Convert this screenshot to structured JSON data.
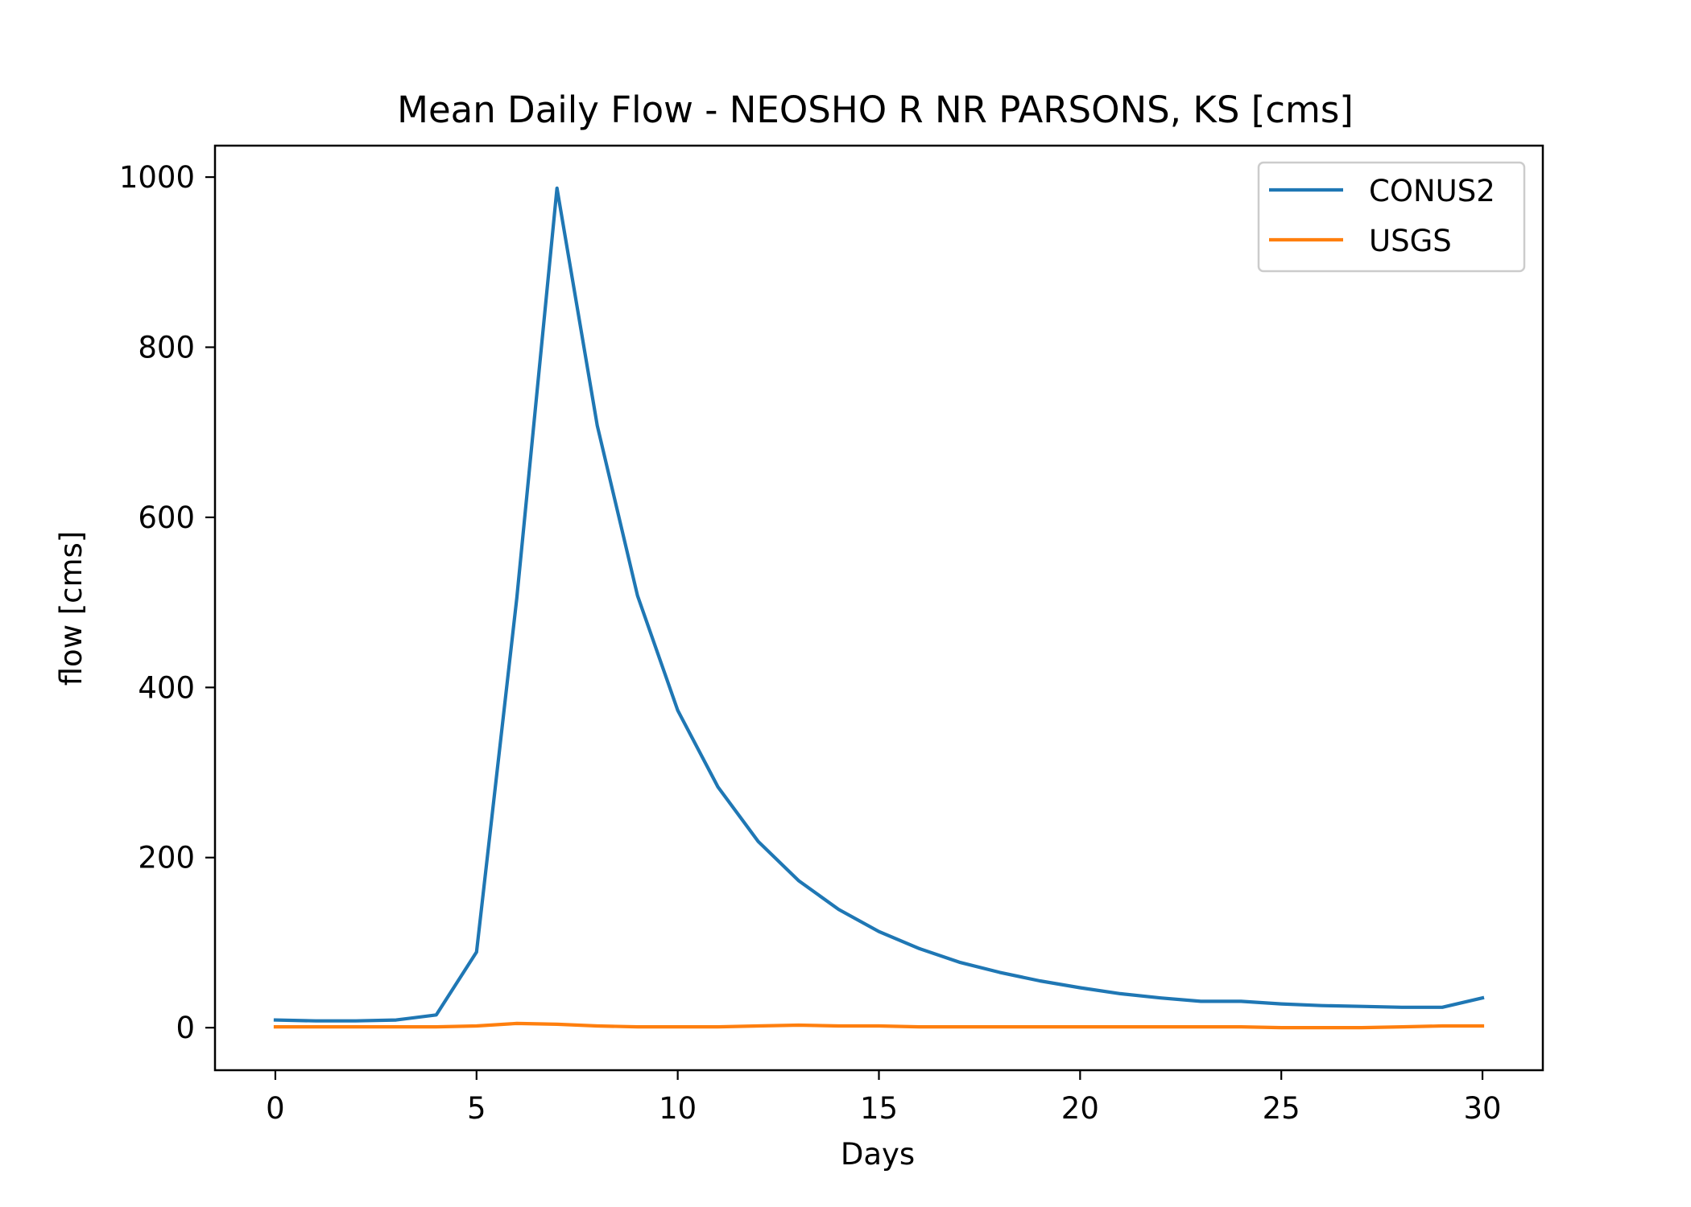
{
  "chart_data": {
    "type": "line",
    "title": "Mean Daily Flow - NEOSHO R NR PARSONS, KS [cms]",
    "xlabel": "Days",
    "ylabel": "flow [cms]",
    "xlim": [
      -1.5,
      31.5
    ],
    "ylim": [
      -50,
      1037
    ],
    "xticks": [
      0,
      5,
      10,
      15,
      20,
      25,
      30
    ],
    "yticks": [
      0,
      200,
      400,
      600,
      800,
      1000
    ],
    "grid": false,
    "legend_position": "top-right",
    "x": [
      0,
      1,
      2,
      3,
      4,
      5,
      6,
      7,
      8,
      9,
      10,
      11,
      12,
      13,
      14,
      15,
      16,
      17,
      18,
      19,
      20,
      21,
      22,
      23,
      24,
      25,
      26,
      27,
      28,
      29,
      30
    ],
    "series": [
      {
        "name": "CONUS2",
        "color": "#1f77b4",
        "values": [
          9,
          8,
          8,
          9,
          15,
          89,
          505,
          987,
          708,
          508,
          373,
          283,
          219,
          173,
          139,
          113,
          93,
          77,
          65,
          55,
          47,
          40,
          35,
          31,
          31,
          28,
          26,
          25,
          24,
          24,
          35
        ]
      },
      {
        "name": "USGS",
        "color": "#ff7f0e",
        "values": [
          1,
          1,
          1,
          1,
          1,
          2,
          5,
          4,
          2,
          1,
          1,
          1,
          2,
          3,
          2,
          2,
          1,
          1,
          1,
          1,
          1,
          1,
          1,
          1,
          1,
          0,
          0,
          0,
          1,
          2,
          2
        ]
      }
    ]
  }
}
